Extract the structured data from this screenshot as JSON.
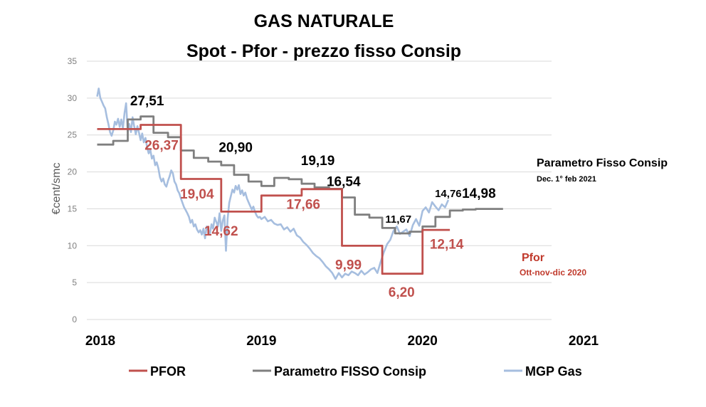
{
  "chart_data": {
    "type": "line",
    "title": "GAS NATURALE",
    "subtitle": "Spot - Pfor - prezzo fisso Consip",
    "ylabel": "€cent/smc",
    "ylim": [
      0,
      35
    ],
    "yticks": [
      "0",
      "5",
      "10",
      "15",
      "20",
      "25",
      "30",
      "35"
    ],
    "xlim": [
      2018.0,
      2021.0
    ],
    "year_labels": [
      {
        "x": 2018.0,
        "label": "2018"
      },
      {
        "x": 2019.0,
        "label": "2019"
      },
      {
        "x": 2020.0,
        "label": "2020"
      },
      {
        "x": 2021.0,
        "label": "2021"
      }
    ],
    "grid": true,
    "legend_position": "bottom",
    "colors": {
      "pfor": "#c0504d",
      "fisso": "#7f7f7f",
      "mgp": "#a6bedf",
      "pfor_note": "#c0392b"
    },
    "series": [
      {
        "name": "PFOR",
        "color": "#c0504d",
        "step_points": [
          [
            2017.98,
            25.8
          ],
          [
            2018.25,
            25.8
          ],
          [
            2018.25,
            26.37
          ],
          [
            2018.5,
            26.37
          ],
          [
            2018.5,
            19.04
          ],
          [
            2018.75,
            19.04
          ],
          [
            2018.75,
            14.62
          ],
          [
            2019.0,
            14.62
          ],
          [
            2019.0,
            16.8
          ],
          [
            2019.25,
            16.8
          ],
          [
            2019.25,
            17.66
          ],
          [
            2019.5,
            17.66
          ],
          [
            2019.5,
            9.99
          ],
          [
            2019.75,
            9.99
          ],
          [
            2019.75,
            6.2
          ],
          [
            2020.0,
            6.2
          ],
          [
            2020.0,
            12.14
          ],
          [
            2020.17,
            12.14
          ]
        ]
      },
      {
        "name": "Parametro FISSO Consip",
        "color": "#7f7f7f",
        "step_points": [
          [
            2017.98,
            23.7
          ],
          [
            2018.08,
            23.7
          ],
          [
            2018.08,
            24.2
          ],
          [
            2018.17,
            24.2
          ],
          [
            2018.17,
            27.1
          ],
          [
            2018.25,
            27.1
          ],
          [
            2018.25,
            27.51
          ],
          [
            2018.33,
            27.51
          ],
          [
            2018.33,
            25.3
          ],
          [
            2018.42,
            25.3
          ],
          [
            2018.42,
            24.7
          ],
          [
            2018.5,
            24.7
          ],
          [
            2018.5,
            22.9
          ],
          [
            2018.58,
            22.9
          ],
          [
            2018.58,
            21.9
          ],
          [
            2018.67,
            21.9
          ],
          [
            2018.67,
            21.4
          ],
          [
            2018.75,
            21.4
          ],
          [
            2018.75,
            20.9
          ],
          [
            2018.83,
            20.9
          ],
          [
            2018.83,
            19.6
          ],
          [
            2018.92,
            19.6
          ],
          [
            2018.92,
            18.7
          ],
          [
            2019.0,
            18.7
          ],
          [
            2019.0,
            18.1
          ],
          [
            2019.08,
            18.1
          ],
          [
            2019.08,
            19.19
          ],
          [
            2019.17,
            19.19
          ],
          [
            2019.17,
            19.0
          ],
          [
            2019.25,
            19.0
          ],
          [
            2019.25,
            18.4
          ],
          [
            2019.33,
            18.4
          ],
          [
            2019.33,
            17.9
          ],
          [
            2019.42,
            17.9
          ],
          [
            2019.42,
            17.7
          ],
          [
            2019.5,
            17.7
          ],
          [
            2019.5,
            16.54
          ],
          [
            2019.58,
            16.54
          ],
          [
            2019.58,
            14.2
          ],
          [
            2019.67,
            14.2
          ],
          [
            2019.67,
            13.8
          ],
          [
            2019.75,
            13.8
          ],
          [
            2019.75,
            12.4
          ],
          [
            2019.83,
            12.4
          ],
          [
            2019.83,
            11.67
          ],
          [
            2019.92,
            11.67
          ],
          [
            2019.92,
            11.9
          ],
          [
            2020.0,
            11.9
          ],
          [
            2020.0,
            12.6
          ],
          [
            2020.08,
            12.6
          ],
          [
            2020.08,
            13.9
          ],
          [
            2020.17,
            13.9
          ],
          [
            2020.17,
            14.76
          ],
          [
            2020.25,
            14.76
          ],
          [
            2020.25,
            14.9
          ],
          [
            2020.33,
            14.9
          ],
          [
            2020.33,
            14.98
          ],
          [
            2020.5,
            14.98
          ]
        ]
      },
      {
        "name": "MGP Gas",
        "color": "#a6bedf",
        "points": [
          [
            2017.98,
            30.2
          ],
          [
            2017.99,
            31.3
          ],
          [
            2018.0,
            30.0
          ],
          [
            2018.01,
            29.5
          ],
          [
            2018.02,
            29.0
          ],
          [
            2018.03,
            28.6
          ],
          [
            2018.04,
            27.4
          ],
          [
            2018.05,
            26.5
          ],
          [
            2018.06,
            25.4
          ],
          [
            2018.07,
            24.9
          ],
          [
            2018.08,
            25.6
          ],
          [
            2018.09,
            26.8
          ],
          [
            2018.1,
            26.4
          ],
          [
            2018.11,
            27.2
          ],
          [
            2018.12,
            26.1
          ],
          [
            2018.13,
            27.1
          ],
          [
            2018.14,
            25.9
          ],
          [
            2018.15,
            28.0
          ],
          [
            2018.16,
            29.3
          ],
          [
            2018.17,
            25.4
          ],
          [
            2018.18,
            26.5
          ],
          [
            2018.19,
            25.4
          ],
          [
            2018.2,
            27.4
          ],
          [
            2018.21,
            26.2
          ],
          [
            2018.22,
            25.1
          ],
          [
            2018.23,
            26.2
          ],
          [
            2018.24,
            25.3
          ],
          [
            2018.25,
            24.3
          ],
          [
            2018.26,
            25.2
          ],
          [
            2018.27,
            24.0
          ],
          [
            2018.28,
            24.6
          ],
          [
            2018.29,
            23.4
          ],
          [
            2018.3,
            22.5
          ],
          [
            2018.31,
            23.0
          ],
          [
            2018.32,
            21.8
          ],
          [
            2018.33,
            22.2
          ],
          [
            2018.34,
            20.9
          ],
          [
            2018.35,
            21.3
          ],
          [
            2018.36,
            20.5
          ],
          [
            2018.37,
            19.3
          ],
          [
            2018.38,
            18.7
          ],
          [
            2018.39,
            19.1
          ],
          [
            2018.4,
            18.3
          ],
          [
            2018.41,
            18.0
          ],
          [
            2018.42,
            18.8
          ],
          [
            2018.43,
            19.4
          ],
          [
            2018.44,
            20.2
          ],
          [
            2018.45,
            19.8
          ],
          [
            2018.46,
            18.7
          ],
          [
            2018.47,
            18.3
          ],
          [
            2018.48,
            17.5
          ],
          [
            2018.49,
            17.1
          ],
          [
            2018.5,
            16.4
          ],
          [
            2018.51,
            15.8
          ],
          [
            2018.52,
            15.2
          ],
          [
            2018.53,
            14.8
          ],
          [
            2018.54,
            14.4
          ],
          [
            2018.55,
            13.9
          ],
          [
            2018.56,
            13.1
          ],
          [
            2018.57,
            13.5
          ],
          [
            2018.58,
            12.6
          ],
          [
            2018.59,
            12.9
          ],
          [
            2018.6,
            12.2
          ],
          [
            2018.61,
            11.8
          ],
          [
            2018.62,
            12.1
          ],
          [
            2018.63,
            11.5
          ],
          [
            2018.64,
            12.3
          ],
          [
            2018.65,
            11.0
          ],
          [
            2018.66,
            12.6
          ],
          [
            2018.67,
            12.1
          ],
          [
            2018.68,
            11.6
          ],
          [
            2018.69,
            12.9
          ],
          [
            2018.7,
            12.3
          ],
          [
            2018.71,
            13.8
          ],
          [
            2018.72,
            13.2
          ],
          [
            2018.73,
            12.6
          ],
          [
            2018.74,
            14.4
          ],
          [
            2018.75,
            12.0
          ],
          [
            2018.76,
            13.4
          ],
          [
            2018.77,
            14.1
          ],
          [
            2018.78,
            9.3
          ],
          [
            2018.79,
            13.6
          ],
          [
            2018.8,
            15.8
          ],
          [
            2018.81,
            16.7
          ],
          [
            2018.82,
            17.6
          ],
          [
            2018.83,
            17.2
          ],
          [
            2018.84,
            18.1
          ],
          [
            2018.85,
            17.6
          ],
          [
            2018.86,
            18.2
          ],
          [
            2018.87,
            17.0
          ],
          [
            2018.88,
            17.5
          ],
          [
            2018.89,
            16.8
          ],
          [
            2018.9,
            17.2
          ],
          [
            2018.91,
            16.4
          ],
          [
            2018.92,
            15.9
          ],
          [
            2018.93,
            15.4
          ],
          [
            2018.94,
            14.9
          ],
          [
            2018.95,
            15.3
          ],
          [
            2018.96,
            14.6
          ],
          [
            2018.97,
            14.1
          ],
          [
            2018.98,
            13.8
          ],
          [
            2018.99,
            13.9
          ],
          [
            2019.0,
            13.6
          ],
          [
            2019.02,
            13.9
          ],
          [
            2019.04,
            13.3
          ],
          [
            2019.06,
            13.5
          ],
          [
            2019.08,
            13.0
          ],
          [
            2019.1,
            12.8
          ],
          [
            2019.12,
            12.9
          ],
          [
            2019.14,
            12.2
          ],
          [
            2019.16,
            12.5
          ],
          [
            2019.18,
            11.9
          ],
          [
            2019.2,
            12.3
          ],
          [
            2019.22,
            11.4
          ],
          [
            2019.24,
            11.1
          ],
          [
            2019.26,
            10.5
          ],
          [
            2019.28,
            10.1
          ],
          [
            2019.3,
            9.6
          ],
          [
            2019.32,
            9.0
          ],
          [
            2019.34,
            8.6
          ],
          [
            2019.36,
            8.3
          ],
          [
            2019.38,
            7.8
          ],
          [
            2019.4,
            7.2
          ],
          [
            2019.42,
            6.8
          ],
          [
            2019.44,
            6.3
          ],
          [
            2019.46,
            5.5
          ],
          [
            2019.48,
            6.3
          ],
          [
            2019.5,
            5.7
          ],
          [
            2019.52,
            6.2
          ],
          [
            2019.54,
            6.0
          ],
          [
            2019.56,
            6.5
          ],
          [
            2019.58,
            6.3
          ],
          [
            2019.6,
            6.0
          ],
          [
            2019.62,
            6.6
          ],
          [
            2019.64,
            6.1
          ],
          [
            2019.66,
            6.4
          ],
          [
            2019.68,
            6.8
          ],
          [
            2019.7,
            7.0
          ],
          [
            2019.72,
            6.3
          ],
          [
            2019.74,
            7.8
          ],
          [
            2019.76,
            9.1
          ],
          [
            2019.78,
            10.2
          ],
          [
            2019.8,
            10.8
          ],
          [
            2019.82,
            12.0
          ],
          [
            2019.84,
            12.6
          ],
          [
            2019.86,
            11.6
          ],
          [
            2019.88,
            11.9
          ],
          [
            2019.9,
            12.2
          ],
          [
            2019.92,
            11.3
          ],
          [
            2019.94,
            12.8
          ],
          [
            2019.96,
            13.6
          ],
          [
            2019.98,
            12.7
          ],
          [
            2020.0,
            14.7
          ],
          [
            2020.02,
            15.2
          ],
          [
            2020.04,
            14.5
          ],
          [
            2020.06,
            15.9
          ],
          [
            2020.08,
            15.3
          ],
          [
            2020.1,
            14.8
          ],
          [
            2020.12,
            15.6
          ],
          [
            2020.14,
            15.2
          ],
          [
            2020.16,
            16.2
          ]
        ]
      }
    ],
    "annotations": [
      {
        "x": 2018.29,
        "y": 29.0,
        "text": "27,51",
        "series": "Parametro FISSO Consip"
      },
      {
        "x": 2018.38,
        "y": 23.0,
        "text": "26,37",
        "series": "PFOR"
      },
      {
        "x": 2018.84,
        "y": 22.7,
        "text": "20,90",
        "series": "Parametro FISSO Consip"
      },
      {
        "x": 2018.6,
        "y": 16.4,
        "text": "19,04",
        "series": "PFOR"
      },
      {
        "x": 2018.75,
        "y": 11.4,
        "text": "14,62",
        "series": "PFOR"
      },
      {
        "x": 2019.35,
        "y": 20.9,
        "text": "19,19",
        "series": "Parametro FISSO Consip"
      },
      {
        "x": 2019.26,
        "y": 15.0,
        "text": "17,66",
        "series": "PFOR"
      },
      {
        "x": 2019.51,
        "y": 18.1,
        "text": "16,54",
        "series": "Parametro FISSO Consip"
      },
      {
        "x": 2019.54,
        "y": 6.8,
        "text": "9,99",
        "series": "PFOR"
      },
      {
        "x": 2019.85,
        "y": 13.1,
        "text": "11,67",
        "series": "Parametro FISSO Consip"
      },
      {
        "x": 2019.87,
        "y": 3.1,
        "text": "6,20",
        "series": "PFOR"
      },
      {
        "x": 2020.16,
        "y": 16.6,
        "text": "14,76",
        "series": "Parametro FISSO Consip"
      },
      {
        "x": 2020.35,
        "y": 16.5,
        "text": "14,98",
        "series": "Parametro FISSO Consip"
      },
      {
        "x": 2020.15,
        "y": 9.6,
        "text": "12,14",
        "series": "PFOR"
      }
    ],
    "notes": {
      "consip_title": "Parametro Fisso Consip",
      "consip_sub": "Dec. 1° feb 2021",
      "pfor_title": "Pfor",
      "pfor_sub": "Ott-nov-dic 2020"
    },
    "legend": [
      {
        "label": "PFOR",
        "series": "PFOR"
      },
      {
        "label": "Parametro FISSO Consip",
        "series": "Parametro FISSO Consip"
      },
      {
        "label": "MGP Gas",
        "series": "MGP Gas"
      }
    ]
  }
}
